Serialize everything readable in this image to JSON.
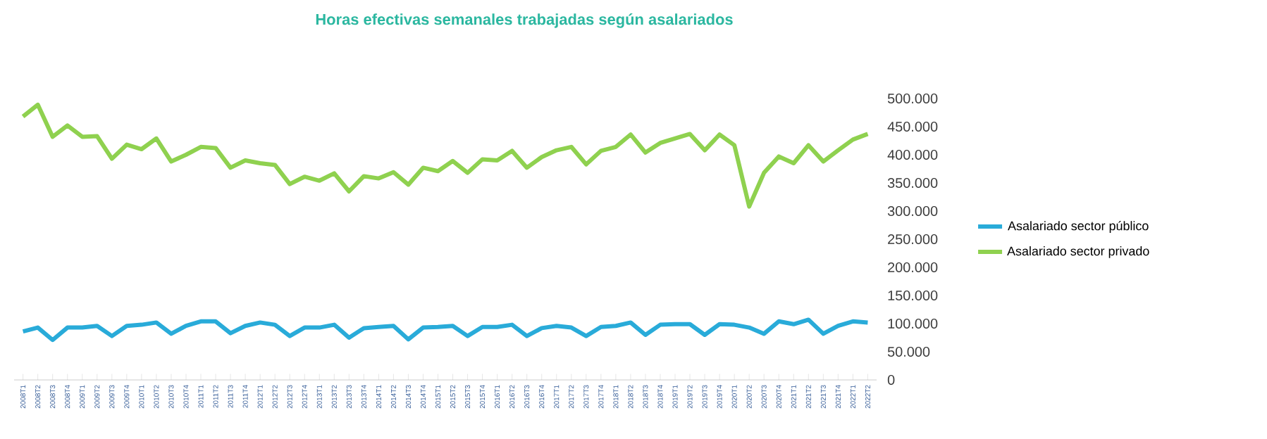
{
  "chart_data": {
    "type": "line",
    "title": "Horas efectivas semanales trabajadas según asalariados",
    "categories": [
      "2008T1",
      "2008T2",
      "2008T3",
      "2008T4",
      "2009T1",
      "2009T2",
      "2009T3",
      "2009T4",
      "2010T1",
      "2010T2",
      "2010T3",
      "2010T4",
      "2011T1",
      "2011T2",
      "2011T3",
      "2011T4",
      "2012T1",
      "2012T2",
      "2012T3",
      "2012T4",
      "2013T1",
      "2013T2",
      "2013T3",
      "2013T4",
      "2014T1",
      "2014T2",
      "2014T3",
      "2014T4",
      "2015T1",
      "2015T2",
      "2015T3",
      "2015T4",
      "2016T1",
      "2016T2",
      "2016T3",
      "2016T4",
      "2017T1",
      "2017T2",
      "2017T3",
      "2017T4",
      "2018T1",
      "2018T2",
      "2018T3",
      "2018T4",
      "2019T1",
      "2019T2",
      "2019T3",
      "2019T4",
      "2020T1",
      "2020T2",
      "2020T3",
      "2020T4",
      "2021T1",
      "2021T2",
      "2021T3",
      "2021T4",
      "2022T1",
      "2022T2"
    ],
    "series": [
      {
        "name": "Asalariado sector público",
        "color": "#29abd9",
        "values": [
          86000,
          93000,
          71000,
          93000,
          93000,
          96000,
          78000,
          96000,
          98000,
          102000,
          82000,
          96000,
          104000,
          104000,
          83000,
          96000,
          102000,
          98000,
          78000,
          93000,
          93000,
          98000,
          75000,
          92000,
          94000,
          96000,
          72000,
          93000,
          94000,
          96000,
          78000,
          94000,
          94000,
          98000,
          78000,
          92000,
          96000,
          93000,
          78000,
          94000,
          96000,
          102000,
          80000,
          98000,
          99000,
          99000,
          80000,
          99000,
          98000,
          93000,
          82000,
          104000,
          99000,
          107000,
          82000,
          96000,
          104000,
          102000
        ]
      },
      {
        "name": "Asalariado sector privado",
        "color": "#8fd14f",
        "values": [
          468000,
          489000,
          432000,
          452000,
          432000,
          433000,
          393000,
          418000,
          410000,
          429000,
          388000,
          400000,
          414000,
          412000,
          377000,
          390000,
          385000,
          382000,
          348000,
          361000,
          354000,
          367000,
          335000,
          362000,
          358000,
          369000,
          347000,
          377000,
          371000,
          389000,
          368000,
          392000,
          390000,
          407000,
          377000,
          396000,
          408000,
          414000,
          383000,
          407000,
          414000,
          436000,
          404000,
          421000,
          429000,
          437000,
          408000,
          436000,
          417000,
          308000,
          368000,
          397000,
          385000,
          417000,
          388000,
          408000,
          427000,
          437000
        ]
      }
    ],
    "ylim": [
      0,
      500000
    ],
    "yticks": [
      {
        "value": 0,
        "label": "0"
      },
      {
        "value": 50000,
        "label": "50.000"
      },
      {
        "value": 100000,
        "label": "100.000"
      },
      {
        "value": 150000,
        "label": "150.000"
      },
      {
        "value": 200000,
        "label": "200.000"
      },
      {
        "value": 250000,
        "label": "250.000"
      },
      {
        "value": 300000,
        "label": "300.000"
      },
      {
        "value": 350000,
        "label": "350.000"
      },
      {
        "value": 400000,
        "label": "400.000"
      },
      {
        "value": 450000,
        "label": "450.000"
      },
      {
        "value": 500000,
        "label": "500.000"
      }
    ],
    "legend": "right"
  }
}
